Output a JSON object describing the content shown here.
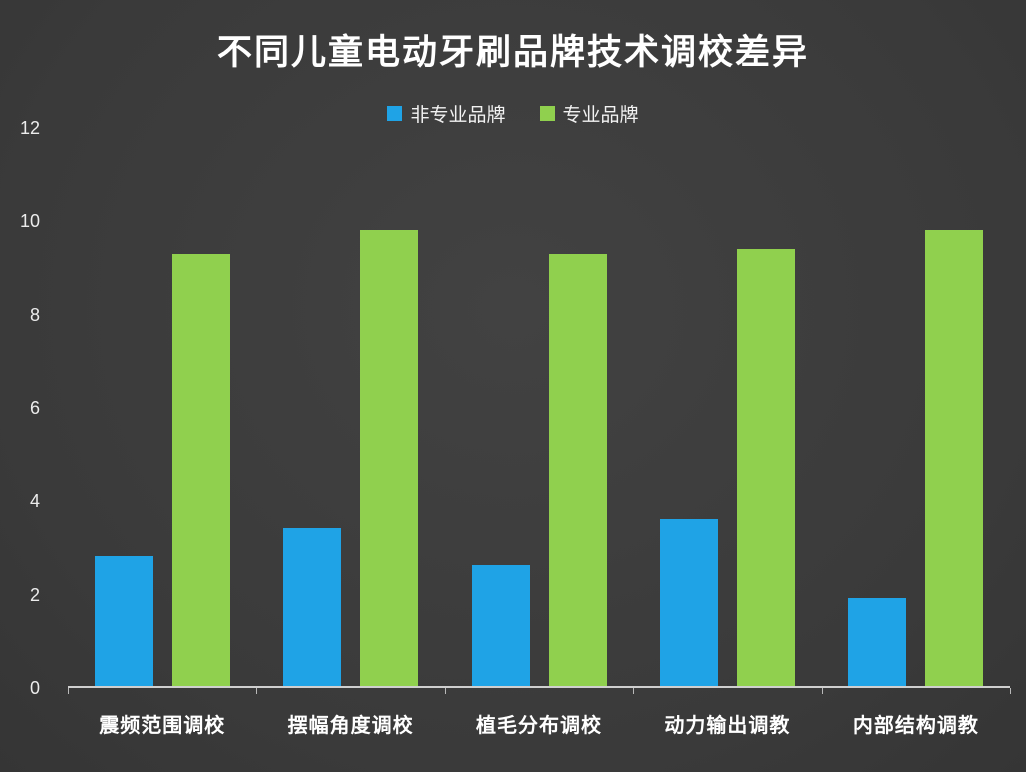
{
  "chart_data": {
    "type": "bar",
    "title": "不同儿童电动牙刷品牌技术调校差异",
    "categories": [
      "震频范围调校",
      "摆幅角度调校",
      "植毛分布调校",
      "动力输出调教",
      "内部结构调教"
    ],
    "series": [
      {
        "name": "非专业品牌",
        "color": "#1fa3e6",
        "values": [
          2.8,
          3.4,
          2.6,
          3.6,
          1.9
        ]
      },
      {
        "name": "专业品牌",
        "color": "#90d04e",
        "values": [
          9.3,
          9.8,
          9.3,
          9.4,
          9.8
        ]
      }
    ],
    "xlabel": "",
    "ylabel": "",
    "ylim": [
      0,
      12
    ],
    "yticks": [
      0,
      2,
      4,
      6,
      8,
      10,
      12
    ],
    "grid": false,
    "legend_position": "top"
  },
  "colors": {
    "background": "#3a3a3a",
    "text": "#ffffff",
    "axis": "#cfcfcf"
  }
}
